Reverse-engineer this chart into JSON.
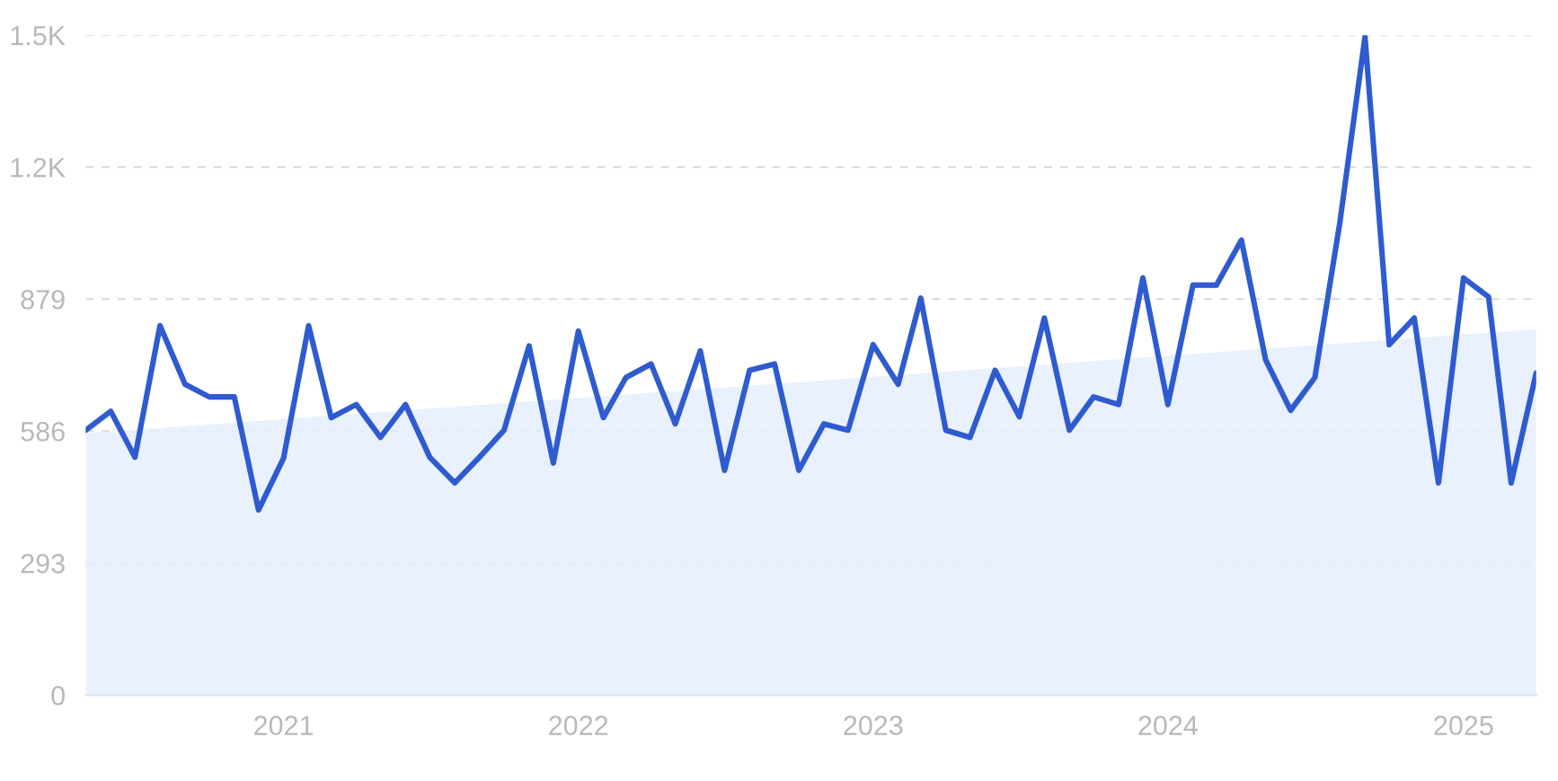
{
  "chart_data": {
    "type": "line",
    "x": [
      "2020-05",
      "2020-06",
      "2020-07",
      "2020-08",
      "2020-09",
      "2020-10",
      "2020-11",
      "2020-12",
      "2021-01",
      "2021-02",
      "2021-03",
      "2021-04",
      "2021-05",
      "2021-06",
      "2021-07",
      "2021-08",
      "2021-09",
      "2021-10",
      "2021-11",
      "2021-12",
      "2022-01",
      "2022-02",
      "2022-03",
      "2022-04",
      "2022-05",
      "2022-06",
      "2022-07",
      "2022-08",
      "2022-09",
      "2022-10",
      "2022-11",
      "2022-12",
      "2023-01",
      "2023-02",
      "2023-03",
      "2023-04",
      "2023-05",
      "2023-06",
      "2023-07",
      "2023-08",
      "2023-09",
      "2023-10",
      "2023-11",
      "2023-12",
      "2024-01",
      "2024-02",
      "2024-03",
      "2024-04",
      "2024-05",
      "2024-06",
      "2024-07",
      "2024-08",
      "2024-09",
      "2024-10",
      "2024-11",
      "2024-12",
      "2025-01",
      "2025-02",
      "2025-03",
      "2025-04"
    ],
    "series": [
      {
        "type": "area",
        "color": "#e2edfc",
        "x": [
          "2020-05",
          "2025-04"
        ],
        "values": [
          581,
          812
        ]
      },
      {
        "color": "#2f5bd0",
        "values": [
          588,
          630,
          528,
          820,
          690,
          662,
          662,
          411,
          526,
          820,
          616,
          645,
          572,
          645,
          528,
          471,
          529,
          588,
          775,
          515,
          808,
          616,
          705,
          735,
          602,
          764,
          499,
          721,
          735,
          499,
          602,
          588,
          778,
          690,
          881,
          588,
          572,
          721,
          618,
          837,
          588,
          662,
          645,
          926,
          645,
          910,
          910,
          1010,
          744,
          632,
          705,
          1050,
          1461,
          778,
          837,
          471,
          926,
          884,
          471,
          715
        ]
      }
    ],
    "xlim": [
      "2020-05",
      "2025-04"
    ],
    "xticks": [
      {
        "value": "2021",
        "label": "2021"
      },
      {
        "value": "2022",
        "label": "2022"
      },
      {
        "value": "2023",
        "label": "2023"
      },
      {
        "value": "2024",
        "label": "2024"
      },
      {
        "value": "2025",
        "label": "2025"
      }
    ],
    "ylim": [
      0,
      1465
    ],
    "yticks": [
      0,
      293,
      586,
      879,
      {
        "value": 1172,
        "label": "1.2K"
      },
      {
        "value": 1465,
        "label": "1.5K"
      }
    ],
    "grid": "y",
    "legend": false
  }
}
